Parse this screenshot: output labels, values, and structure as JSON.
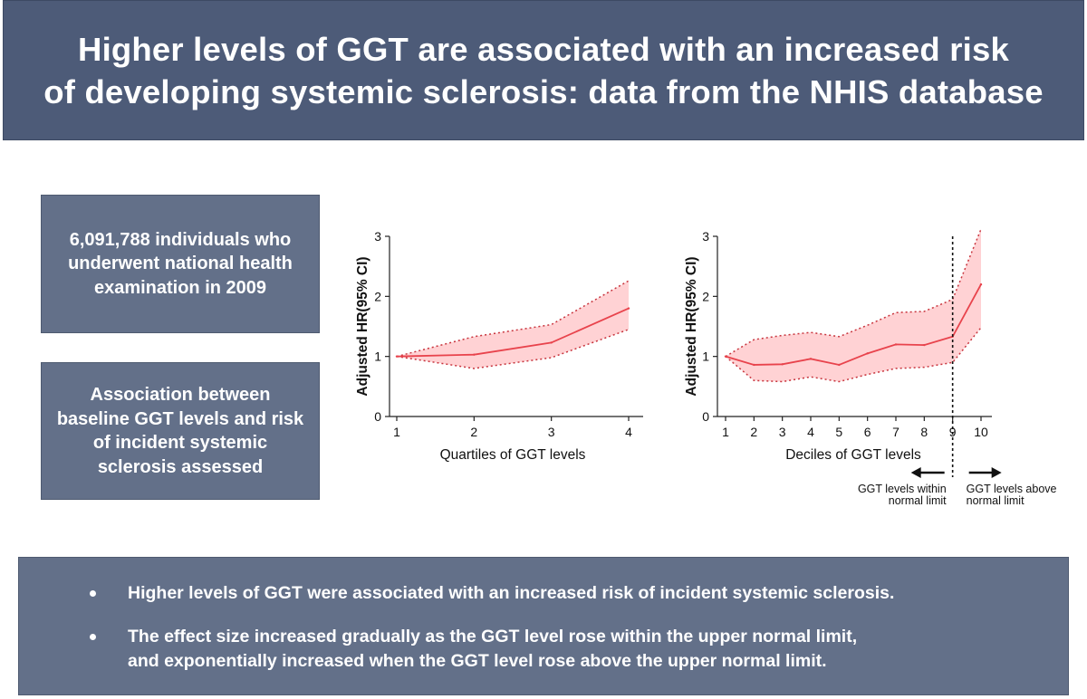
{
  "title": {
    "line1": "Higher levels of GGT are associated with an increased risk",
    "line2": "of developing systemic sclerosis: data from the NHIS database"
  },
  "info_boxes": {
    "population": "6,091,788 individuals who underwent national health examination in 2009",
    "design": "Association between baseline GGT levels and risk of incident systemic sclerosis assessed"
  },
  "chart_data": [
    {
      "type": "line",
      "title": "",
      "xlabel": "Quartiles of GGT levels",
      "ylabel": "Adjusted HR(95% CI)",
      "x": [
        1,
        2,
        3,
        4
      ],
      "ylim": [
        0,
        3
      ],
      "yticks": [
        0,
        1,
        2,
        3
      ],
      "series": [
        {
          "name": "Adjusted HR",
          "values": [
            1.0,
            1.03,
            1.23,
            1.8
          ]
        },
        {
          "name": "Upper 95% CI",
          "values": [
            1.0,
            1.33,
            1.53,
            2.26
          ]
        },
        {
          "name": "Lower 95% CI",
          "values": [
            1.0,
            0.8,
            0.98,
            1.45
          ]
        }
      ],
      "colors": {
        "line": "#e8434c",
        "band": "#ffd2d4",
        "ci_line": "#c8343d"
      }
    },
    {
      "type": "line",
      "title": "",
      "xlabel": "Deciles of GGT levels",
      "ylabel": "Adjusted HR(95% CI)",
      "x": [
        1,
        2,
        3,
        4,
        5,
        6,
        7,
        8,
        9,
        10
      ],
      "ylim": [
        0,
        3
      ],
      "yticks": [
        0,
        1,
        2,
        3
      ],
      "series": [
        {
          "name": "Adjusted HR",
          "values": [
            1.0,
            0.86,
            0.87,
            0.96,
            0.86,
            1.05,
            1.2,
            1.19,
            1.33,
            2.2
          ]
        },
        {
          "name": "Upper 95% CI",
          "values": [
            1.0,
            1.28,
            1.35,
            1.4,
            1.33,
            1.52,
            1.73,
            1.75,
            1.95,
            3.12
          ]
        },
        {
          "name": "Lower 95% CI",
          "values": [
            1.0,
            0.6,
            0.58,
            0.66,
            0.58,
            0.7,
            0.8,
            0.82,
            0.9,
            1.48
          ]
        }
      ],
      "reference_x": 9,
      "annotations": {
        "left_label": "GGT levels within\nnormal limit",
        "right_label": "GGT levels above\nnormal limit"
      },
      "colors": {
        "line": "#e8434c",
        "band": "#ffd2d4",
        "ci_line": "#c8343d"
      }
    }
  ],
  "findings": {
    "bullets": [
      "Higher levels of GGT were associated with an increased risk of incident systemic sclerosis.",
      "The effect size increased gradually as the GGT level rose within the upper normal limit,\nand exponentially increased when the GGT level rose above the upper normal limit."
    ]
  }
}
